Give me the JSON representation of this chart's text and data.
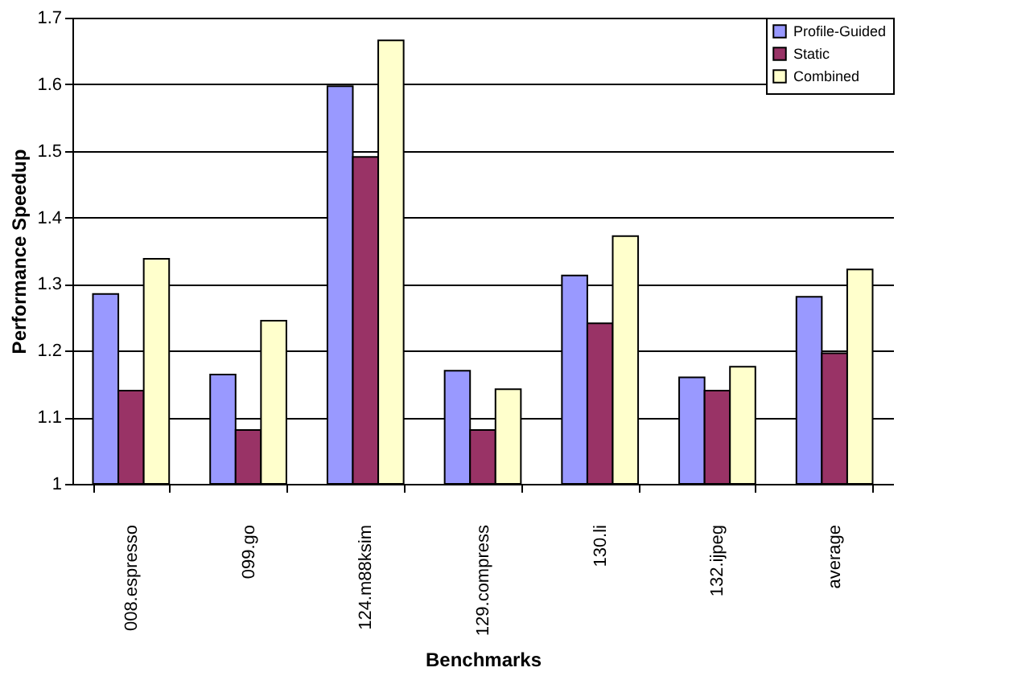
{
  "chart_data": {
    "type": "bar",
    "xlabel": "Benchmarks",
    "ylabel": "Performance Speedup",
    "categories": [
      "008.espresso",
      "099.go",
      "124.m88ksim",
      "129.compress",
      "130.li",
      "132.ijpeg",
      "average"
    ],
    "series": [
      {
        "name": "Profile-Guided",
        "color": "#9999ff",
        "values": [
          1.285,
          1.164,
          1.597,
          1.17,
          1.313,
          1.16,
          1.281
        ]
      },
      {
        "name": "Static",
        "color": "#993366",
        "values": [
          1.14,
          1.081,
          1.491,
          1.081,
          1.241,
          1.14,
          1.196
        ]
      },
      {
        "name": "Combined",
        "color": "#ffffcc",
        "values": [
          1.338,
          1.245,
          1.666,
          1.142,
          1.372,
          1.176,
          1.322
        ]
      }
    ],
    "ylim": [
      1,
      1.7
    ],
    "yticks": [
      1,
      1.1,
      1.2,
      1.3,
      1.4,
      1.5,
      1.6,
      1.7
    ],
    "grid": "y",
    "legend": "top right"
  }
}
